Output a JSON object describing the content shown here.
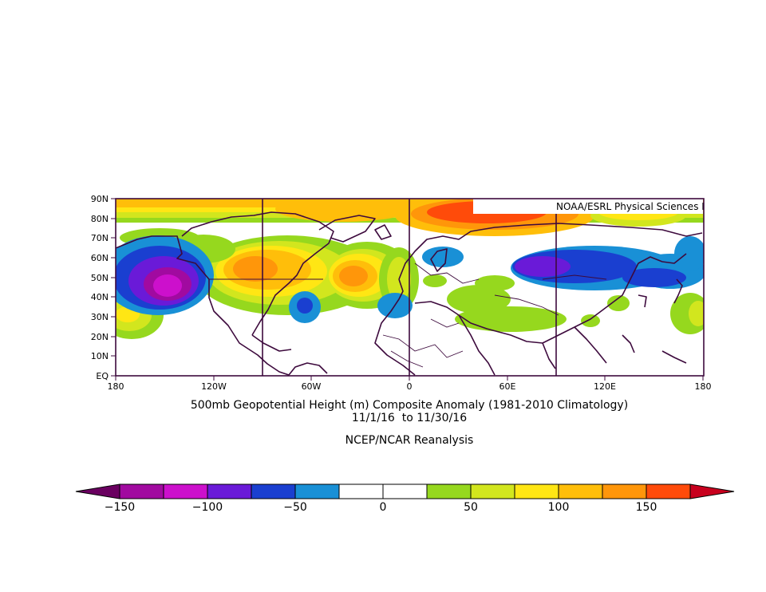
{
  "map": {
    "credit": "NOAA/ESRL Physical Sciences Division",
    "lat_labels": [
      "90N",
      "80N",
      "70N",
      "60N",
      "50N",
      "40N",
      "30N",
      "20N",
      "10N",
      "EQ"
    ],
    "lon_labels": [
      "180",
      "120W",
      "60W",
      "0",
      "60E",
      "120E",
      "180"
    ],
    "region": {
      "lon_range": [
        -180,
        180
      ],
      "lat_range": [
        0,
        90
      ]
    }
  },
  "caption": {
    "title": "500mb Geopotential Height (m) Composite Anomaly (1981-2010 Climatology)",
    "dates": "11/1/16  to 11/30/16",
    "source": "NCEP/NCAR Reanalysis"
  },
  "colorbar": {
    "labels": [
      "-150",
      "-100",
      "-50",
      "0",
      "50",
      "100",
      "150"
    ],
    "colors": [
      "#6a0060",
      "#a10aa0",
      "#cc10cc",
      "#6a1ad8",
      "#1a3fd0",
      "#1990d6",
      "#ffffff",
      "#ffffff",
      "#96d81e",
      "#d2e61e",
      "#ffe614",
      "#ffbe0a",
      "#ff960a",
      "#ff4b0a",
      "#c8001e"
    ],
    "units": "m"
  },
  "anomalies": [
    {
      "name": "north-pacific-low",
      "lon": -148,
      "lat": 46,
      "peak": -130,
      "color": "#a10aa0"
    },
    {
      "name": "east-siberia-low",
      "lon": 78,
      "lat": 56,
      "peak": -100,
      "color": "#6a1ad8"
    },
    {
      "name": "west-atlantic-low",
      "lon": -55,
      "lat": 34,
      "peak": -75,
      "color": "#1a3fd0"
    },
    {
      "name": "canada-high",
      "lon": -90,
      "lat": 54,
      "peak": 120,
      "color": "#ff960a"
    },
    {
      "name": "north-atlantic-high",
      "lon": -30,
      "lat": 50,
      "peak": 120,
      "color": "#ff960a"
    },
    {
      "name": "arctic-high",
      "lon": 45,
      "lat": 84,
      "peak": 150,
      "color": "#ff4b0a"
    }
  ]
}
